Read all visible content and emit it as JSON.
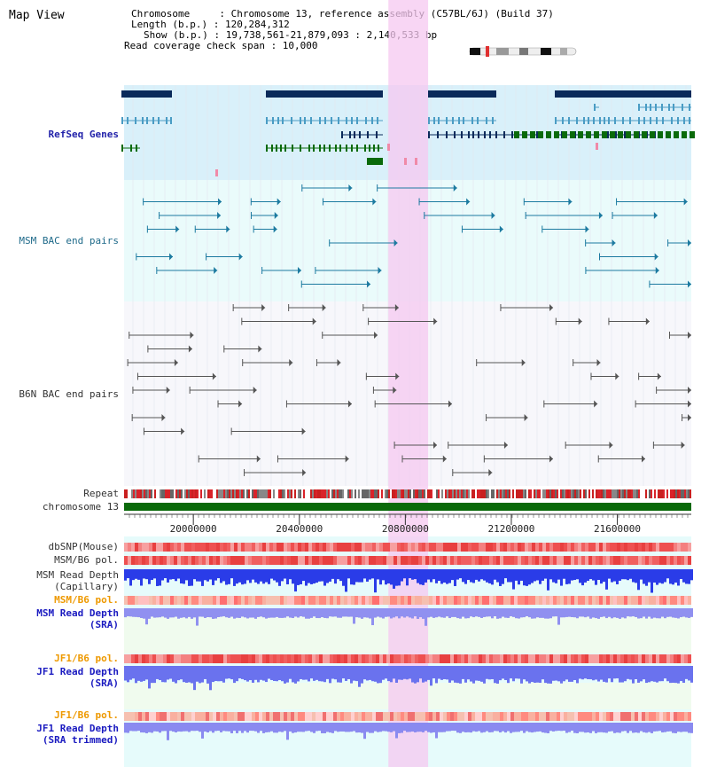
{
  "title": "Map View",
  "info": {
    "chromosome": "Chromosome     : Chromosome 13, reference assembly (C57BL/6J) (Build 37)",
    "length": "Length (b.p.) : 120,284,312",
    "show": "Show (b.p.) : 19,738,561-21,879,093 : 2,140,533 bp",
    "coverage": "Read coverage check span : 10,000"
  },
  "view": {
    "start": 19738561,
    "end": 21879093,
    "highlight": [
      20736000,
      20886000
    ]
  },
  "tracks": {
    "refseq": "RefSeq Genes",
    "msm_bac": "MSM BAC end pairs",
    "b6n_bac": "B6N BAC end pairs",
    "repeat": "Repeat",
    "chromosome": "chromosome 13",
    "dbsnp": "dbSNP(Mouse)",
    "msm_pol": "MSM/B6 pol.",
    "msm_depth_cap_1": "MSM Read Depth",
    "msm_depth_cap_2": "(Capillary)",
    "msm_pol2": "MSM/B6 pol.",
    "msm_depth_sra_1": "MSM Read Depth",
    "msm_depth_sra_2": "(SRA)",
    "jf1_pol": "JF1/B6 pol.",
    "jf1_depth_sra_1": "JF1 Read Depth",
    "jf1_depth_sra_2": "(SRA)",
    "jf1_pol2": "JF1/B6 pol.",
    "jf1_depth_trim_1": "JF1 Read Depth",
    "jf1_depth_trim_2": "(SRA trimmed)"
  },
  "axis_ticks": [
    "20000000",
    "20400000",
    "20800000",
    "21200000",
    "21600000"
  ],
  "colors": {
    "refseq_bg": "#d9f0fa",
    "msm_bg": "#e8fbfb",
    "gene_dark": "#0a2a5a",
    "gene_mid": "#3a8fb8",
    "gene_green": "#0a6a0a",
    "highlight": "#f5c8f0",
    "chromosome": "#0a6a0a"
  }
}
